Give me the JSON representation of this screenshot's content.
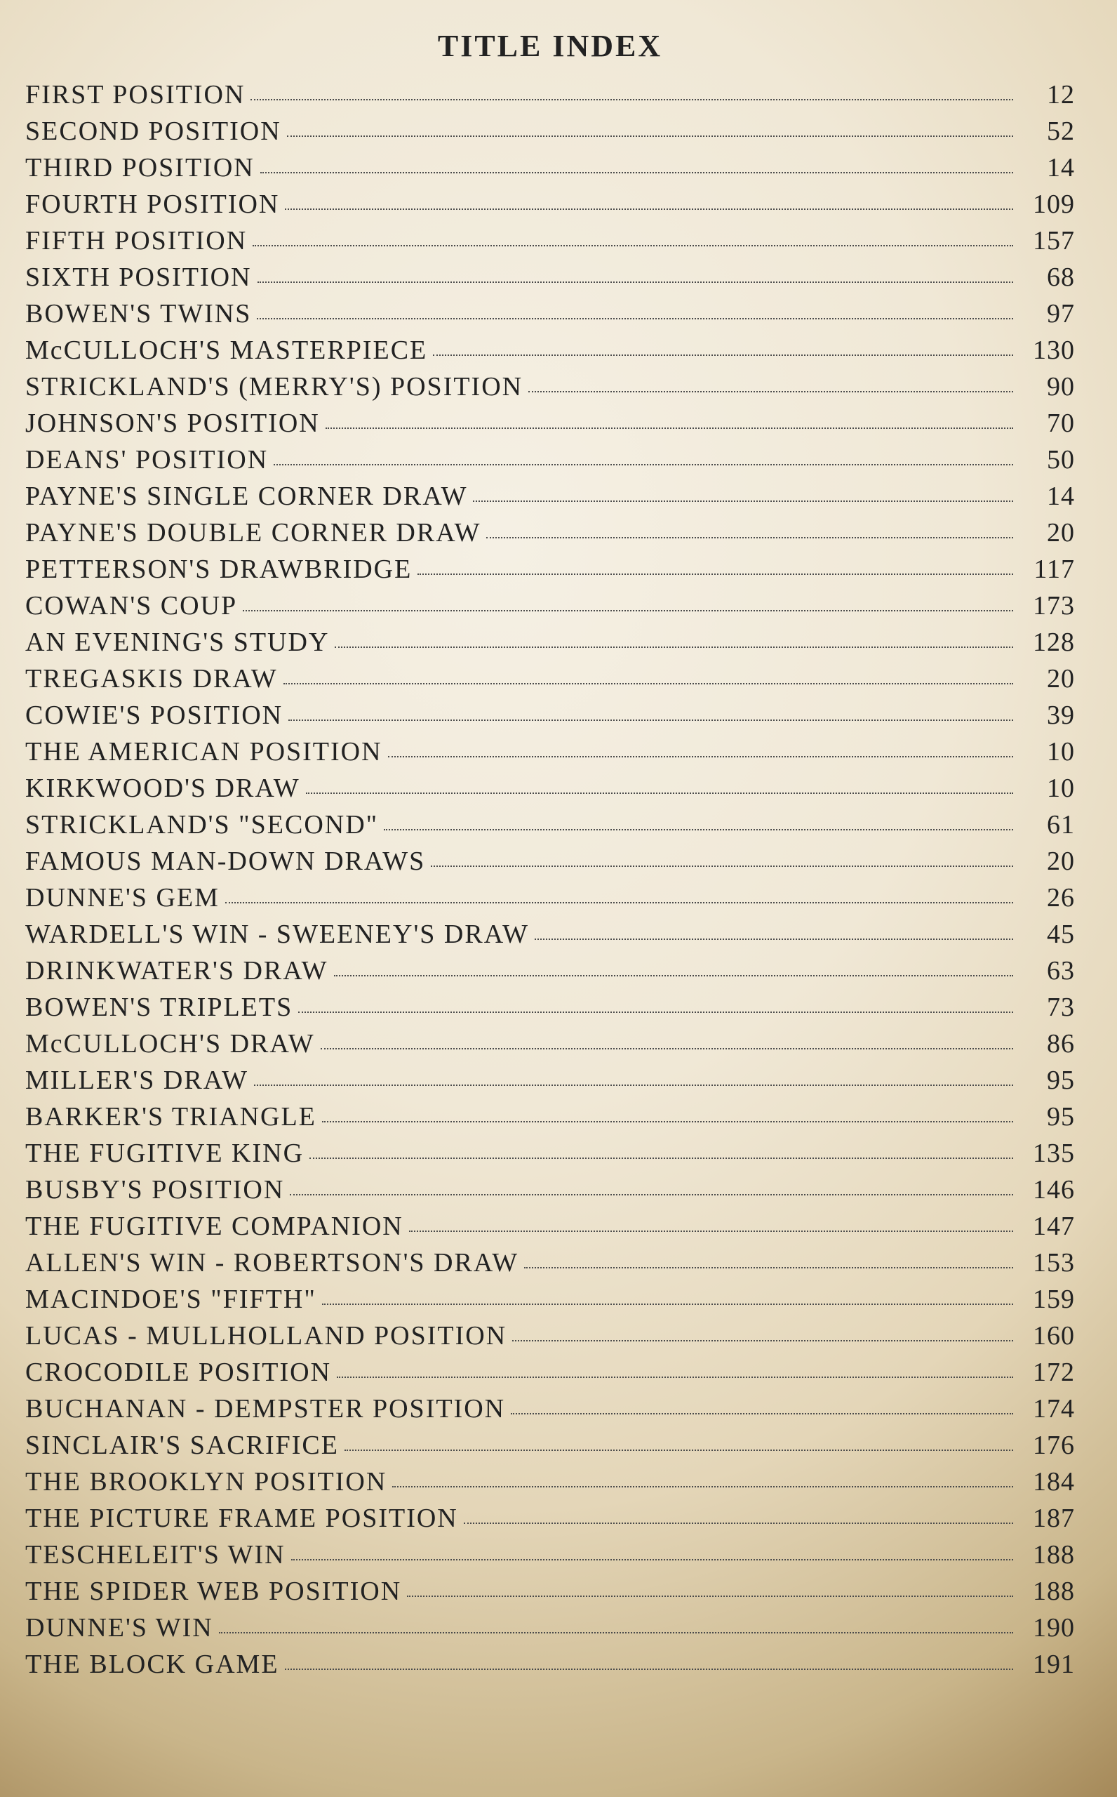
{
  "title": "TITLE  INDEX",
  "title_fontsize": 44,
  "entry_fontsize": 38,
  "line_height": 52,
  "label_color": "#222222",
  "pagenum_color": "#222222",
  "min_pagenum_width": 80,
  "entries": [
    {
      "label": "FIRST  POSITION",
      "page": "12"
    },
    {
      "label": "SECOND  POSITION",
      "page": "52"
    },
    {
      "label": "THIRD  POSITION",
      "page": "14"
    },
    {
      "label": "FOURTH  POSITION",
      "page": "109"
    },
    {
      "label": "FIFTH  POSITION",
      "page": "157"
    },
    {
      "label": "SIXTH  POSITION",
      "page": "68"
    },
    {
      "label": "BOWEN'S  TWINS",
      "page": "97"
    },
    {
      "label": "McCULLOCH'S  MASTERPIECE",
      "page": "130"
    },
    {
      "label": "STRICKLAND'S  (MERRY'S)  POSITION",
      "page": "90"
    },
    {
      "label": "JOHNSON'S  POSITION",
      "page": "70"
    },
    {
      "label": "DEANS'  POSITION",
      "page": "50"
    },
    {
      "label": "PAYNE'S  SINGLE  CORNER  DRAW",
      "page": "14"
    },
    {
      "label": "PAYNE'S  DOUBLE  CORNER  DRAW",
      "page": "20"
    },
    {
      "label": "PETTERSON'S  DRAWBRIDGE",
      "page": "117"
    },
    {
      "label": "COWAN'S  COUP",
      "page": "173"
    },
    {
      "label": "AN  EVENING'S  STUDY",
      "page": "128"
    },
    {
      "label": "TREGASKIS  DRAW",
      "page": "20"
    },
    {
      "label": "COWIE'S  POSITION",
      "page": "39"
    },
    {
      "label": "THE  AMERICAN  POSITION",
      "page": "10"
    },
    {
      "label": "KIRKWOOD'S  DRAW",
      "page": "10"
    },
    {
      "label": "STRICKLAND'S  \"SECOND\"",
      "page": "61"
    },
    {
      "label": "FAMOUS  MAN-DOWN  DRAWS",
      "page": "20"
    },
    {
      "label": "DUNNE'S  GEM",
      "page": "26"
    },
    {
      "label": "WARDELL'S  WIN  -  SWEENEY'S  DRAW",
      "page": "45"
    },
    {
      "label": "DRINKWATER'S  DRAW",
      "page": "63"
    },
    {
      "label": "BOWEN'S  TRIPLETS",
      "page": "73"
    },
    {
      "label": "McCULLOCH'S  DRAW",
      "page": "86"
    },
    {
      "label": "MILLER'S  DRAW",
      "page": "95"
    },
    {
      "label": "BARKER'S  TRIANGLE",
      "page": "95"
    },
    {
      "label": "THE  FUGITIVE  KING",
      "page": "135"
    },
    {
      "label": "BUSBY'S  POSITION",
      "page": "146"
    },
    {
      "label": "THE  FUGITIVE  COMPANION",
      "page": "147"
    },
    {
      "label": "ALLEN'S  WIN  -  ROBERTSON'S  DRAW",
      "page": "153"
    },
    {
      "label": "MACINDOE'S  \"FIFTH\"",
      "page": "159"
    },
    {
      "label": "LUCAS  -  MULLHOLLAND  POSITION",
      "page": "160"
    },
    {
      "label": "CROCODILE  POSITION",
      "page": "172"
    },
    {
      "label": "BUCHANAN  -  DEMPSTER  POSITION",
      "page": "174"
    },
    {
      "label": "SINCLAIR'S  SACRIFICE",
      "page": "176"
    },
    {
      "label": "THE  BROOKLYN  POSITION",
      "page": "184"
    },
    {
      "label": "THE  PICTURE  FRAME  POSITION",
      "page": "187"
    },
    {
      "label": "TESCHELEIT'S  WIN",
      "page": "188"
    },
    {
      "label": "THE  SPIDER  WEB  POSITION",
      "page": "188"
    },
    {
      "label": "DUNNE'S  WIN",
      "page": "190"
    },
    {
      "label": "THE  BLOCK  GAME",
      "page": "191"
    }
  ]
}
